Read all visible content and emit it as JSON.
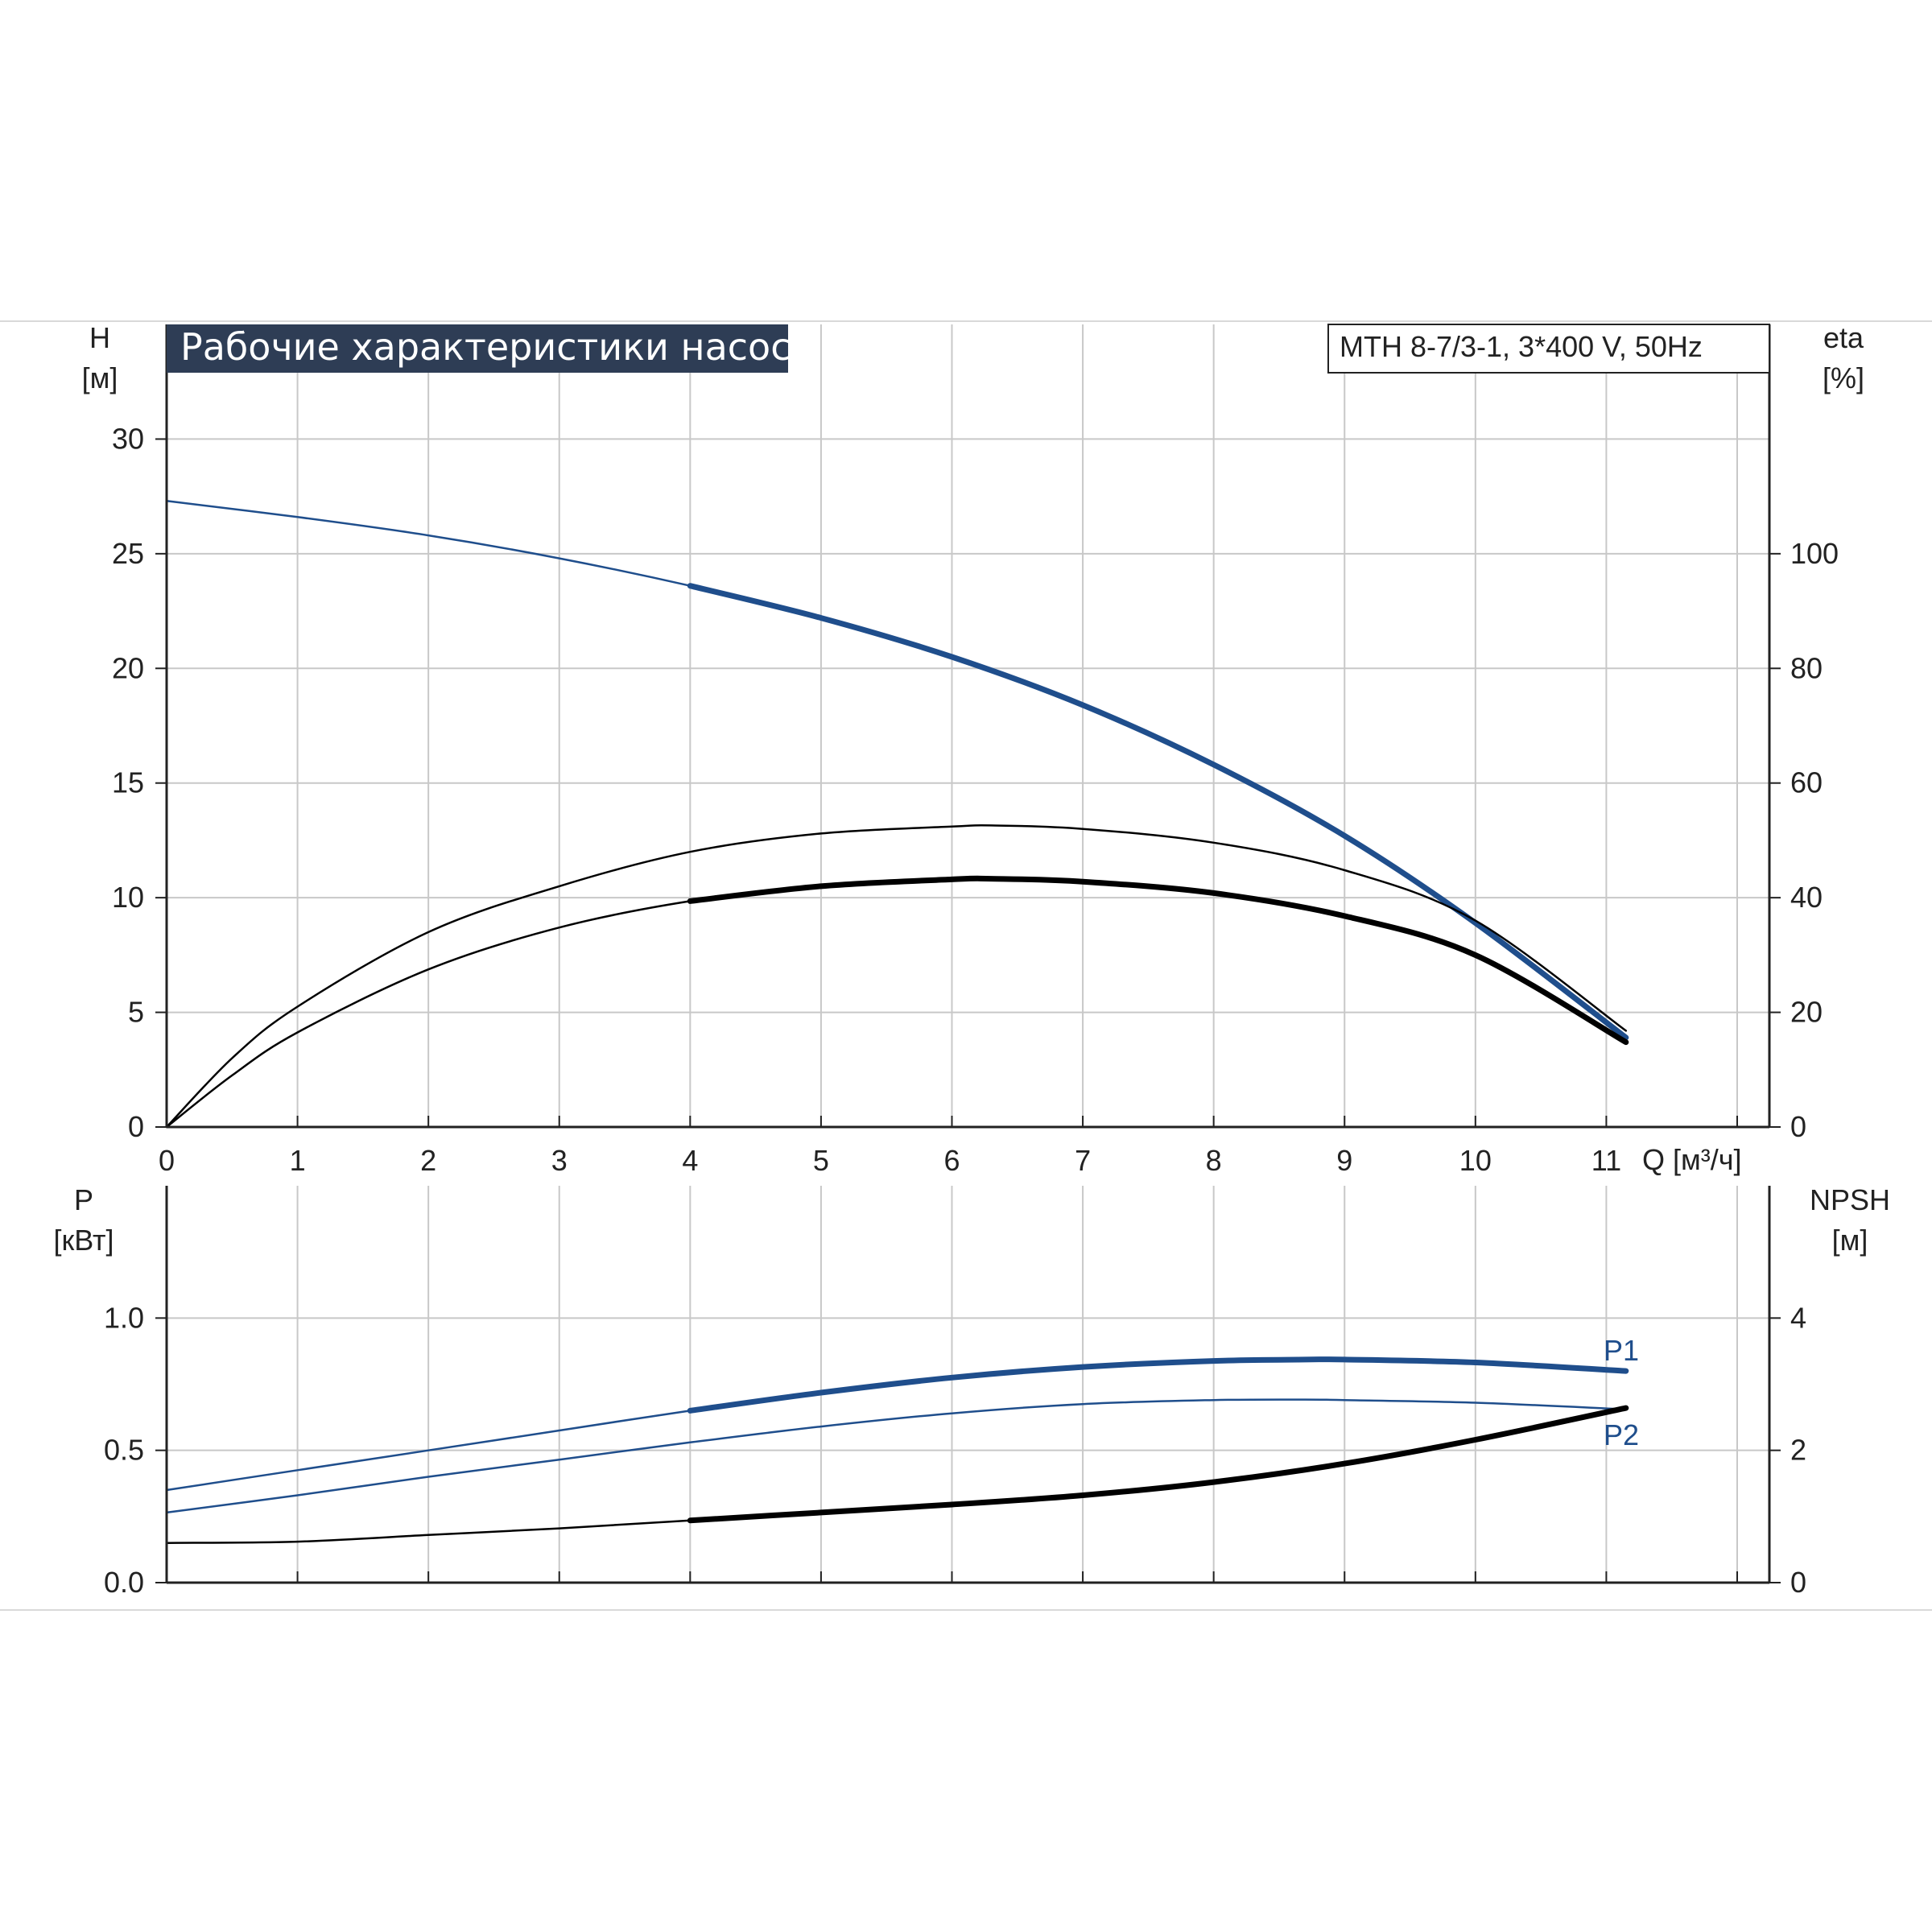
{
  "chart_data": [
    {
      "type": "line",
      "title": "Рабочие характеристики насоса",
      "model": "MTH 8-7/3-1, 3*400 V, 50Hz",
      "x_label": "Q [м³/ч]",
      "x_ticks": [
        "0",
        "1",
        "2",
        "3",
        "4",
        "5",
        "6",
        "7",
        "8",
        "9",
        "10",
        "11"
      ],
      "xlim": [
        0,
        12
      ],
      "y_label_name": "H",
      "y_label_unit": "[м]",
      "y_ticks": [
        "0",
        "5",
        "10",
        "15",
        "20",
        "25",
        "30"
      ],
      "ylim": [
        0,
        35
      ],
      "y2_label_name": "eta",
      "y2_label_unit": "[%]",
      "y2_ticks": [
        "0",
        "20",
        "40",
        "60",
        "80",
        "100"
      ],
      "y2lim": [
        0,
        140
      ],
      "grid": true,
      "series": [
        {
          "color": "#1f4e8c",
          "axis": "left",
          "x": [
            0,
            1,
            2,
            3,
            4,
            5,
            6,
            7,
            8,
            9,
            10,
            11.15
          ],
          "y": [
            27.3,
            26.6,
            25.8,
            24.8,
            23.6,
            22.2,
            20.5,
            18.4,
            15.8,
            12.7,
            8.9,
            3.9
          ],
          "bold_from": 4
        },
        {
          "color": "#000000",
          "axis": "right",
          "x": [
            0,
            0.5,
            1,
            2,
            3,
            4,
            5,
            6,
            6.3,
            7,
            8,
            9,
            10,
            11.15
          ],
          "y": [
            0,
            12,
            21,
            34,
            42,
            48,
            51.2,
            52.4,
            52.6,
            52,
            49.6,
            44.8,
            36,
            16.8
          ]
        },
        {
          "color": "#000000",
          "axis": "right",
          "x": [
            0,
            0.5,
            1,
            2,
            3,
            4,
            5,
            6,
            6.3,
            7,
            8,
            9,
            10,
            11.15
          ],
          "y": [
            0,
            9,
            16.5,
            27.5,
            34.8,
            39.4,
            42,
            43.2,
            43.3,
            42.8,
            40.8,
            36.8,
            30,
            14.8
          ],
          "bold_from": 4
        }
      ]
    },
    {
      "type": "line",
      "x_ticks": [
        "0",
        "1",
        "2",
        "3",
        "4",
        "5",
        "6",
        "7",
        "8",
        "9",
        "10",
        "11"
      ],
      "xlim": [
        0,
        12
      ],
      "y_label_name": "P",
      "y_label_unit": "[кВт]",
      "y_ticks": [
        "0.0",
        "0.5",
        "1.0"
      ],
      "ylim": [
        0,
        1.5
      ],
      "y2_label_name": "NPSH",
      "y2_label_unit": "[м]",
      "y2_ticks": [
        "0",
        "2",
        "4"
      ],
      "y2lim": [
        0,
        6
      ],
      "grid": true,
      "series": [
        {
          "name": "P1",
          "color": "#1f4e8c",
          "axis": "left",
          "x": [
            0,
            1,
            2,
            3,
            4,
            5,
            6,
            7,
            8,
            8.7,
            9,
            10,
            11.15
          ],
          "y": [
            0.35,
            0.425,
            0.5,
            0.575,
            0.65,
            0.718,
            0.775,
            0.815,
            0.838,
            0.843,
            0.843,
            0.832,
            0.8
          ],
          "bold_from": 4
        },
        {
          "name": "P2",
          "color": "#1f4e8c",
          "axis": "left",
          "x": [
            0,
            1,
            2,
            3,
            4,
            5,
            6,
            7,
            8,
            8.7,
            9,
            10,
            11.15
          ],
          "y": [
            0.265,
            0.33,
            0.4,
            0.465,
            0.53,
            0.59,
            0.64,
            0.675,
            0.69,
            0.692,
            0.69,
            0.68,
            0.655
          ]
        },
        {
          "color": "#000000",
          "axis": "right",
          "x": [
            0,
            1,
            2,
            3,
            4,
            5,
            6,
            7,
            8,
            9,
            10,
            11.15
          ],
          "y": [
            0.6,
            0.62,
            0.72,
            0.82,
            0.94,
            1.06,
            1.18,
            1.32,
            1.52,
            1.8,
            2.16,
            2.64
          ],
          "bold_from": 4
        }
      ]
    }
  ]
}
